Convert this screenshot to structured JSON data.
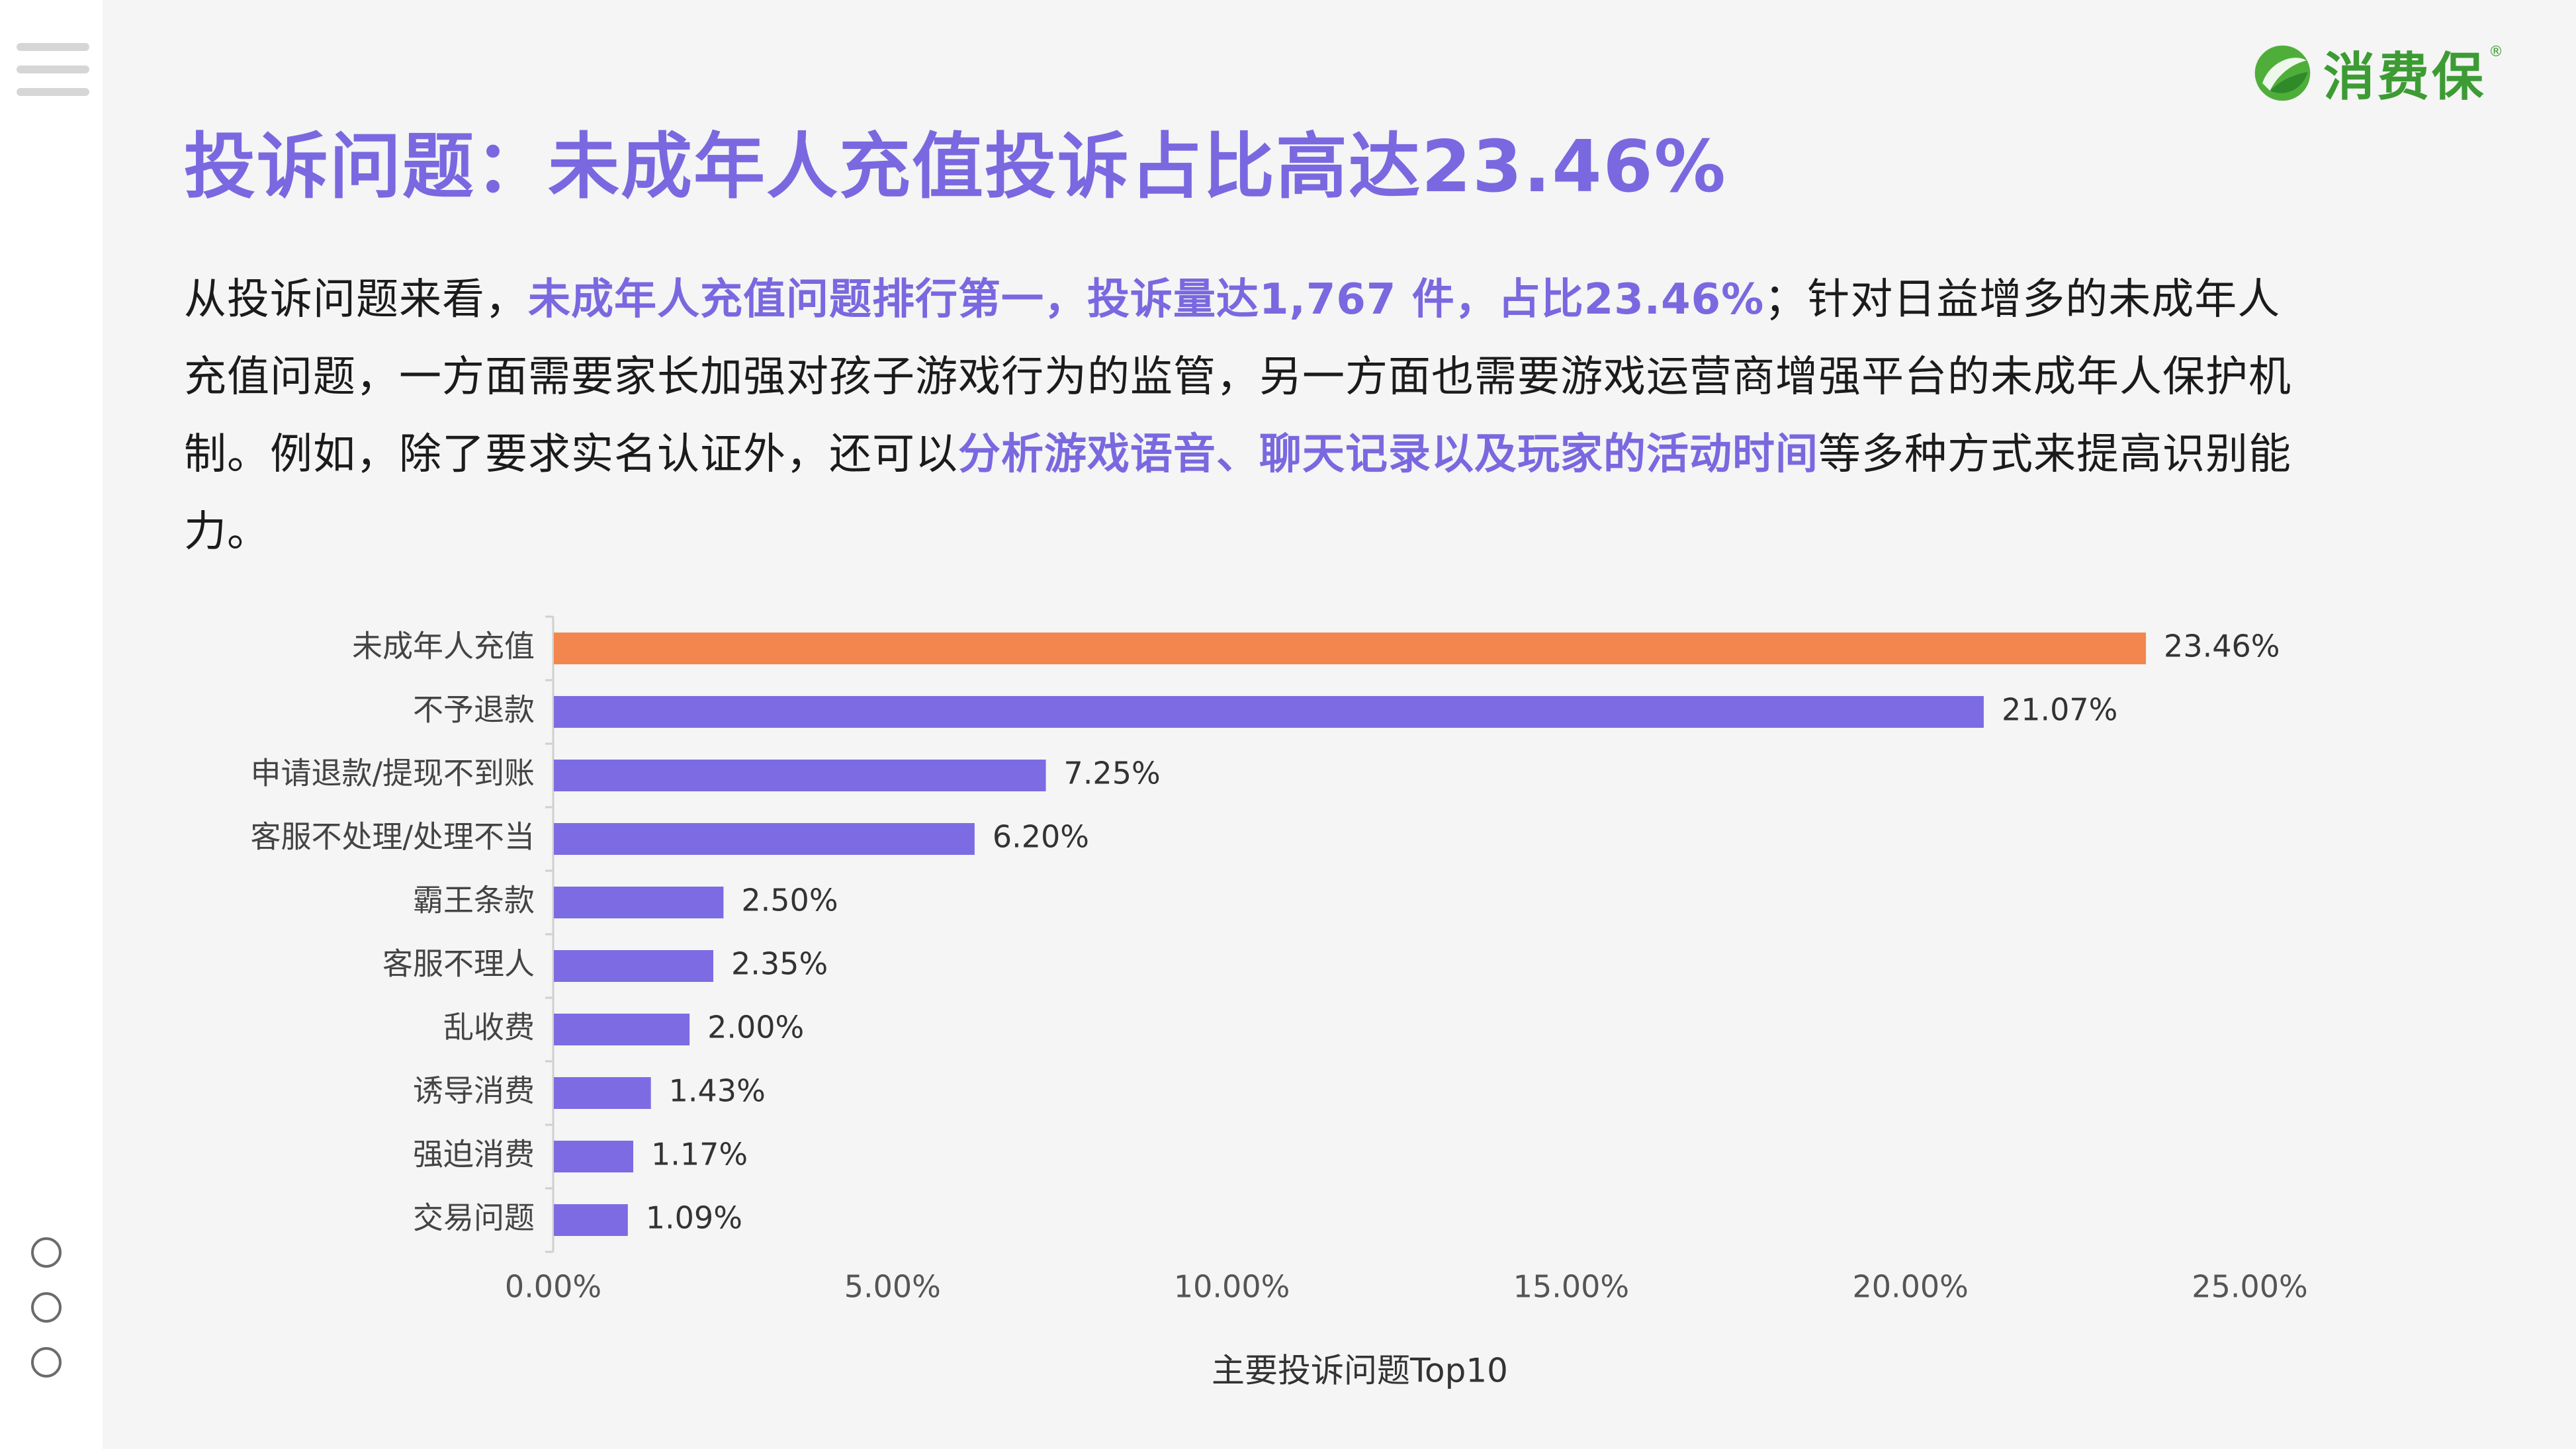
{
  "logo": {
    "name": "消费保",
    "reg": "®"
  },
  "title": "投诉问题：未成年人充值投诉占比高达23.46%",
  "paragraph": {
    "p1": "从投诉问题来看，",
    "h1": "未成年人充值问题排行第一，投诉量达1,767 件，占比23.46%",
    "p2": "；针对日益增多的未成年人充值问题，一方面需要家长加强对孩子游戏行为的监管，另一方面也需要游戏运营商增强平台的未成年人保护机制。例如，除了要求实名认证外，还可以",
    "h2": "分析游戏语音、聊天记录以及玩家的活动时间",
    "p3": "等多种方式来提高识别能力。"
  },
  "colors": {
    "highlight_bar": "#f3864f",
    "bar": "#7c6be3",
    "title": "#7a68e0",
    "logo": "#3d9b34"
  },
  "chart_data": {
    "type": "bar",
    "orientation": "horizontal",
    "categories": [
      "未成年人充值",
      "不予退款",
      "申请退款/提现不到账",
      "客服不处理/处理不当",
      "霸王条款",
      "客服不理人",
      "乱收费",
      "诱导消费",
      "强迫消费",
      "交易问题"
    ],
    "values": [
      23.46,
      21.07,
      7.25,
      6.2,
      2.5,
      2.35,
      2.0,
      1.43,
      1.17,
      1.09
    ],
    "value_labels": [
      "23.46%",
      "21.07%",
      "7.25%",
      "6.20%",
      "2.50%",
      "2.35%",
      "2.00%",
      "1.43%",
      "1.17%",
      "1.09%"
    ],
    "highlight_index": 0,
    "xlim": [
      0,
      25
    ],
    "xticks": [
      0,
      5,
      10,
      15,
      20,
      25
    ],
    "xtick_labels": [
      "0.00%",
      "5.00%",
      "10.00%",
      "15.00%",
      "20.00%",
      "25.00%"
    ],
    "xlabel": "主要投诉问题Top10",
    "grid": false
  }
}
